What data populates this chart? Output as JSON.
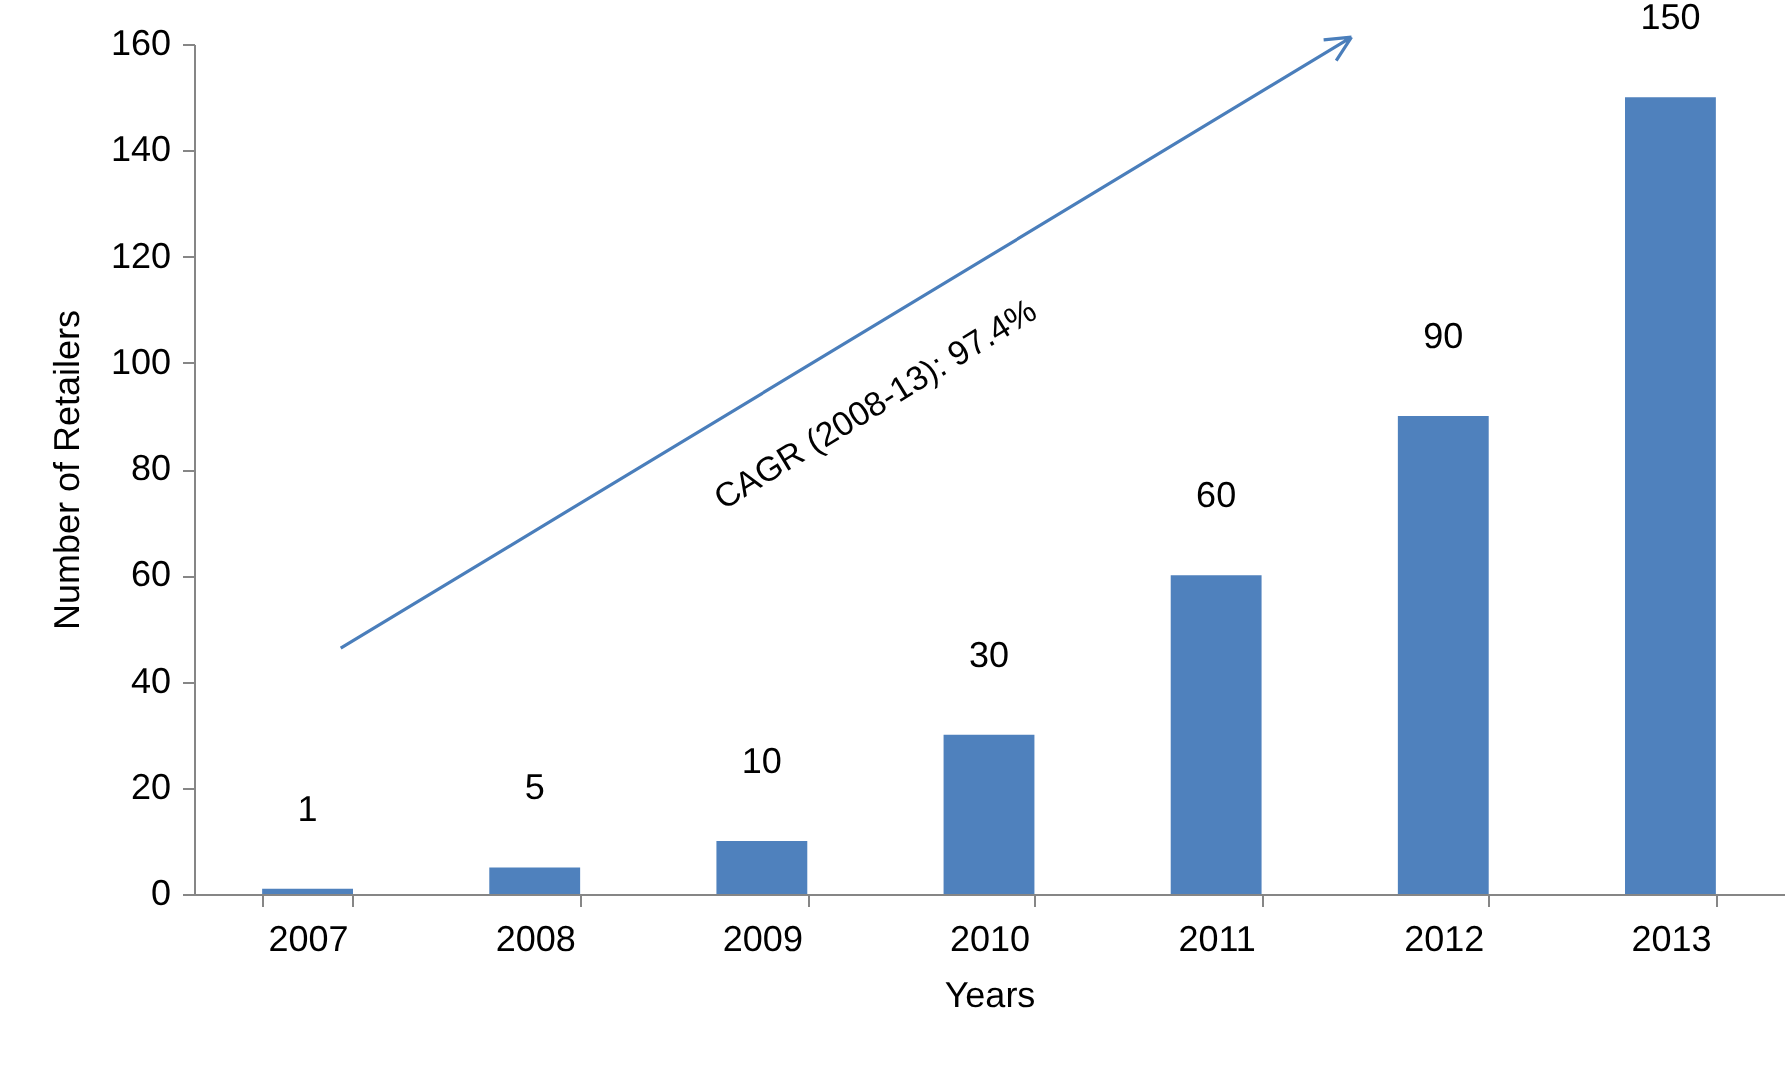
{
  "chart_data": {
    "type": "bar",
    "xlabel": "Years",
    "ylabel": "Number of Retailers",
    "categories": [
      "2007",
      "2008",
      "2009",
      "2010",
      "2011",
      "2012",
      "2013"
    ],
    "values": [
      1,
      5,
      10,
      30,
      60,
      90,
      150
    ],
    "color": "#4f81bd",
    "ylim": [
      0,
      160
    ],
    "yticks": [
      0,
      20,
      40,
      60,
      80,
      100,
      120,
      140,
      160
    ],
    "grid": false,
    "data_labels": true,
    "annotations": [
      "CAGR (2008-13): 97.4%"
    ]
  }
}
